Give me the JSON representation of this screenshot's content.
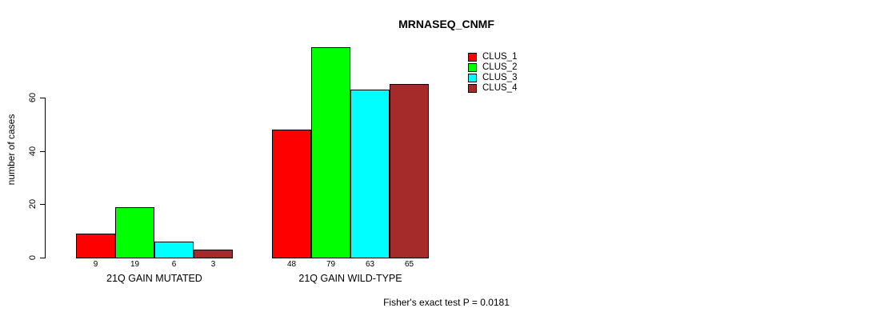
{
  "title": "MRNASEQ_CNMF",
  "footer": "Fisher's exact test P = 0.0181",
  "y_axis": {
    "label": "number of cases",
    "ticks": [
      0,
      20,
      40,
      60
    ]
  },
  "legend": [
    {
      "label": "CLUS_1",
      "color": "#FF0000"
    },
    {
      "label": "CLUS_2",
      "color": "#00FF00"
    },
    {
      "label": "CLUS_3",
      "color": "#00FFFF"
    },
    {
      "label": "CLUS_4",
      "color": "#A52A2A"
    }
  ],
  "chart_data": {
    "type": "bar",
    "title": "MRNASEQ_CNMF",
    "xlabel": "",
    "ylabel": "number of cases",
    "ylim": [
      0,
      79
    ],
    "grid": false,
    "legend_position": "top-right",
    "categories": [
      "21Q GAIN MUTATED",
      "21Q GAIN WILD-TYPE"
    ],
    "series": [
      {
        "name": "CLUS_1",
        "color": "#FF0000",
        "values": [
          9,
          48
        ]
      },
      {
        "name": "CLUS_2",
        "color": "#00FF00",
        "values": [
          19,
          79
        ]
      },
      {
        "name": "CLUS_3",
        "color": "#00FFFF",
        "values": [
          6,
          63
        ]
      },
      {
        "name": "CLUS_4",
        "color": "#A52A2A",
        "values": [
          3,
          65
        ]
      }
    ],
    "bar_value_labels": [
      [
        9,
        19,
        6,
        3
      ],
      [
        48,
        79,
        63,
        65
      ]
    ],
    "annotation": "Fisher's exact test P = 0.0181"
  }
}
